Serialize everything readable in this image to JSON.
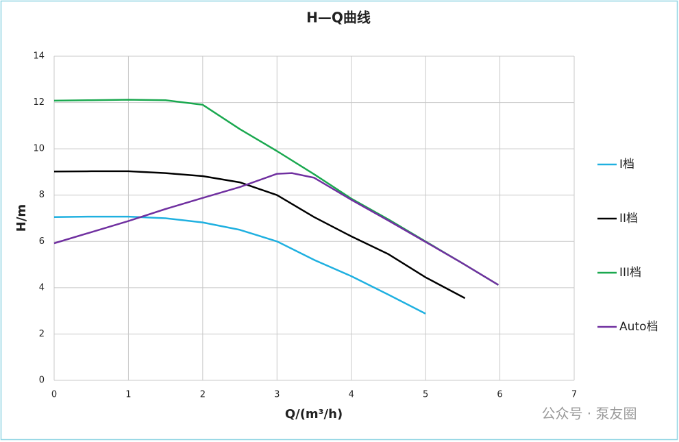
{
  "chart_data": {
    "type": "line",
    "title": "H—Q曲线",
    "x_label": "Q/(m³/h)",
    "y_label": "H/m",
    "xlim": [
      0,
      7
    ],
    "xticks": [
      0,
      1,
      2,
      3,
      4,
      5,
      6,
      7
    ],
    "ylim": [
      0,
      14
    ],
    "yticks": [
      0,
      2,
      4,
      6,
      8,
      10,
      12,
      14
    ],
    "grid": true,
    "legend_position": "right",
    "series": [
      {
        "name": "I档",
        "color": "#1fb0e0",
        "x": [
          0,
          0.5,
          1,
          1.5,
          2,
          2.5,
          3,
          3.5,
          4,
          4.5,
          5
        ],
        "values": [
          7.05,
          7.07,
          7.07,
          7.0,
          6.82,
          6.5,
          6.0,
          5.2,
          4.5,
          3.7,
          2.88
        ]
      },
      {
        "name": "II档",
        "color": "#000000",
        "x": [
          0,
          0.5,
          1,
          1.5,
          2,
          2.5,
          3,
          3.5,
          4,
          4.5,
          5,
          5.53
        ],
        "values": [
          9.02,
          9.03,
          9.03,
          8.95,
          8.82,
          8.55,
          8.0,
          7.05,
          6.22,
          5.45,
          4.45,
          3.55
        ]
      },
      {
        "name": "III档",
        "color": "#1aa84f",
        "x": [
          0,
          0.5,
          1,
          1.5,
          2,
          2.5,
          3,
          3.5,
          4,
          4.5,
          5,
          5.5,
          5.98
        ],
        "values": [
          12.08,
          12.1,
          12.12,
          12.1,
          11.9,
          10.85,
          9.9,
          8.9,
          7.85,
          6.95,
          6.0,
          5.05,
          4.12
        ]
      },
      {
        "name": "Auto档",
        "color": "#7030a0",
        "x": [
          0,
          0.5,
          1,
          1.5,
          2,
          2.5,
          3,
          3.2,
          3.5,
          4,
          4.5,
          5,
          5.5,
          5.98
        ],
        "values": [
          5.92,
          6.4,
          6.88,
          7.4,
          7.88,
          8.35,
          8.92,
          8.95,
          8.75,
          7.8,
          6.9,
          5.98,
          5.05,
          4.12
        ]
      }
    ],
    "watermark": "公众号 · 泵友圈"
  }
}
